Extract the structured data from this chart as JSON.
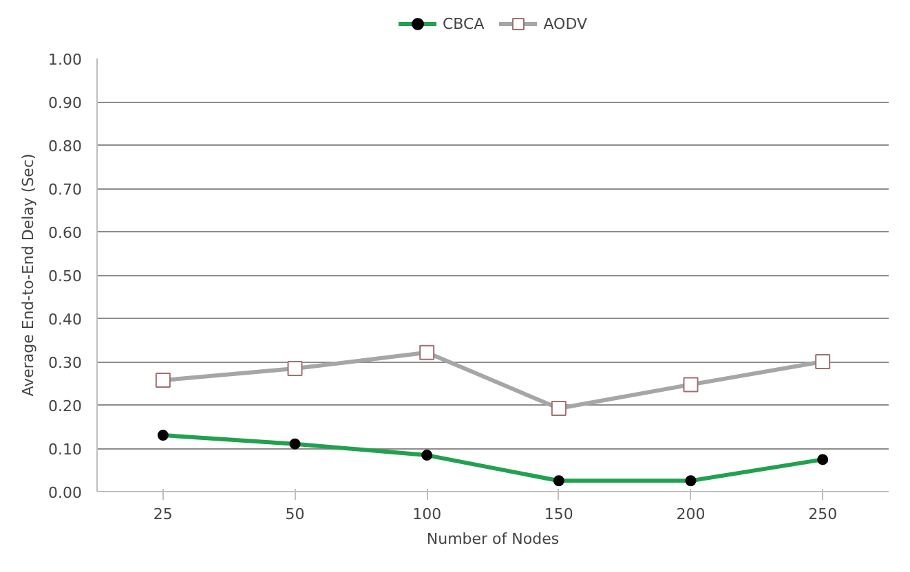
{
  "chart_data": {
    "type": "line",
    "xlabel": "Number of Nodes",
    "ylabel": "Average End-to-End Delay (Sec)",
    "categories": [
      "25",
      "50",
      "100",
      "150",
      "200",
      "250"
    ],
    "series": [
      {
        "name": "CBCA",
        "color": "#21a150",
        "marker": "circle",
        "values": [
          0.13,
          0.11,
          0.084,
          0.025,
          0.025,
          0.074
        ]
      },
      {
        "name": "AODV",
        "color": "#a6a6a6",
        "marker": "square",
        "values": [
          0.257,
          0.284,
          0.321,
          0.192,
          0.247,
          0.3
        ]
      }
    ],
    "ylim": [
      0,
      1
    ],
    "yticks": [
      {
        "value": 0,
        "label": "0.00"
      },
      {
        "value": 0.1,
        "label": "0.10"
      },
      {
        "value": 0.2,
        "label": "0.20"
      },
      {
        "value": 0.3,
        "label": "0.30"
      },
      {
        "value": 0.4,
        "label": "0.40"
      },
      {
        "value": 0.5,
        "label": "0.50"
      },
      {
        "value": 0.6,
        "label": "0.60"
      },
      {
        "value": 0.7,
        "label": "0.70"
      },
      {
        "value": 0.8,
        "label": "0.80"
      },
      {
        "value": 0.9,
        "label": "0.90"
      },
      {
        "value": 1,
        "label": "1.00"
      }
    ],
    "grid": "y",
    "legend": "top"
  }
}
